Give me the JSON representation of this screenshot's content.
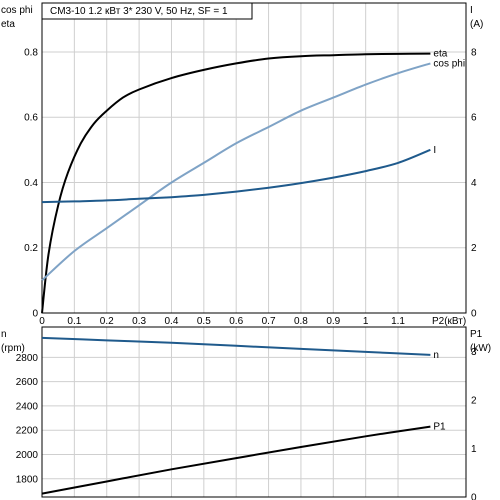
{
  "header": {
    "title": "CM3-10     1.2 кВт    3* 230 V, 50 Hz, SF = 1"
  },
  "chart_data": [
    {
      "type": "line",
      "title": "CM3-10     1.2 кВт    3* 230 V, 50 Hz, SF = 1",
      "xlabel": "P2(кВт)",
      "xlim": [
        0,
        1.31
      ],
      "x_ticks": [
        0,
        0.1,
        0.2,
        0.3,
        0.4,
        0.5,
        0.6,
        0.7,
        0.8,
        0.9,
        1,
        1.1
      ],
      "ylabel_left": [
        "cos phi",
        "eta"
      ],
      "ylim_left": [
        0,
        0.95
      ],
      "y_ticks_left": [
        0,
        0.2,
        0.4,
        0.6,
        0.8
      ],
      "ylabel_right": [
        "I",
        "(A)"
      ],
      "ylim_right": [
        0,
        9.5
      ],
      "y_ticks_right": [
        0,
        2,
        4,
        6,
        8
      ],
      "grid": true,
      "series": [
        {
          "name": "eta",
          "axis": "left",
          "color": "#000000",
          "x": [
            0,
            0.02,
            0.05,
            0.08,
            0.12,
            0.16,
            0.2,
            0.25,
            0.3,
            0.4,
            0.5,
            0.6,
            0.7,
            0.8,
            0.9,
            1.0,
            1.1,
            1.2
          ],
          "y": [
            0,
            0.18,
            0.33,
            0.43,
            0.52,
            0.58,
            0.62,
            0.66,
            0.685,
            0.72,
            0.745,
            0.765,
            0.78,
            0.787,
            0.79,
            0.793,
            0.794,
            0.795
          ]
        },
        {
          "name": "cos phi",
          "axis": "left",
          "color": "#7fa3c6",
          "x": [
            0,
            0.1,
            0.2,
            0.3,
            0.4,
            0.5,
            0.6,
            0.7,
            0.8,
            0.9,
            1.0,
            1.1,
            1.2
          ],
          "y": [
            0.1,
            0.19,
            0.26,
            0.33,
            0.4,
            0.46,
            0.52,
            0.57,
            0.62,
            0.66,
            0.7,
            0.735,
            0.765
          ]
        },
        {
          "name": "I",
          "axis": "right",
          "color": "#1f5a8c",
          "x": [
            0,
            0.1,
            0.2,
            0.3,
            0.4,
            0.5,
            0.6,
            0.7,
            0.8,
            0.9,
            1.0,
            1.1,
            1.2
          ],
          "y": [
            3.4,
            3.42,
            3.45,
            3.5,
            3.55,
            3.62,
            3.72,
            3.84,
            3.98,
            4.15,
            4.35,
            4.6,
            5.0
          ]
        }
      ]
    },
    {
      "type": "line",
      "xlim": [
        0,
        1.31
      ],
      "ylabel_left": [
        "n",
        "(rpm)"
      ],
      "ylim_left": [
        1650,
        3050
      ],
      "y_ticks_left": [
        1800,
        2000,
        2200,
        2400,
        2600,
        2800
      ],
      "ylabel_right": [
        "P1",
        "(kW)"
      ],
      "ylim_right": [
        0,
        3.5
      ],
      "y_ticks_right": [
        0,
        1,
        2,
        3
      ],
      "grid": true,
      "series": [
        {
          "name": "n",
          "axis": "left",
          "color": "#1f5a8c",
          "x": [
            0,
            0.2,
            0.4,
            0.6,
            0.8,
            1.0,
            1.2
          ],
          "y": [
            2960,
            2940,
            2920,
            2895,
            2870,
            2845,
            2820
          ]
        },
        {
          "name": "P1",
          "axis": "right",
          "color": "#000000",
          "x": [
            0,
            0.2,
            0.4,
            0.6,
            0.8,
            1.0,
            1.2
          ],
          "y": [
            0.07,
            0.32,
            0.57,
            0.8,
            1.03,
            1.25,
            1.45
          ]
        }
      ]
    }
  ]
}
